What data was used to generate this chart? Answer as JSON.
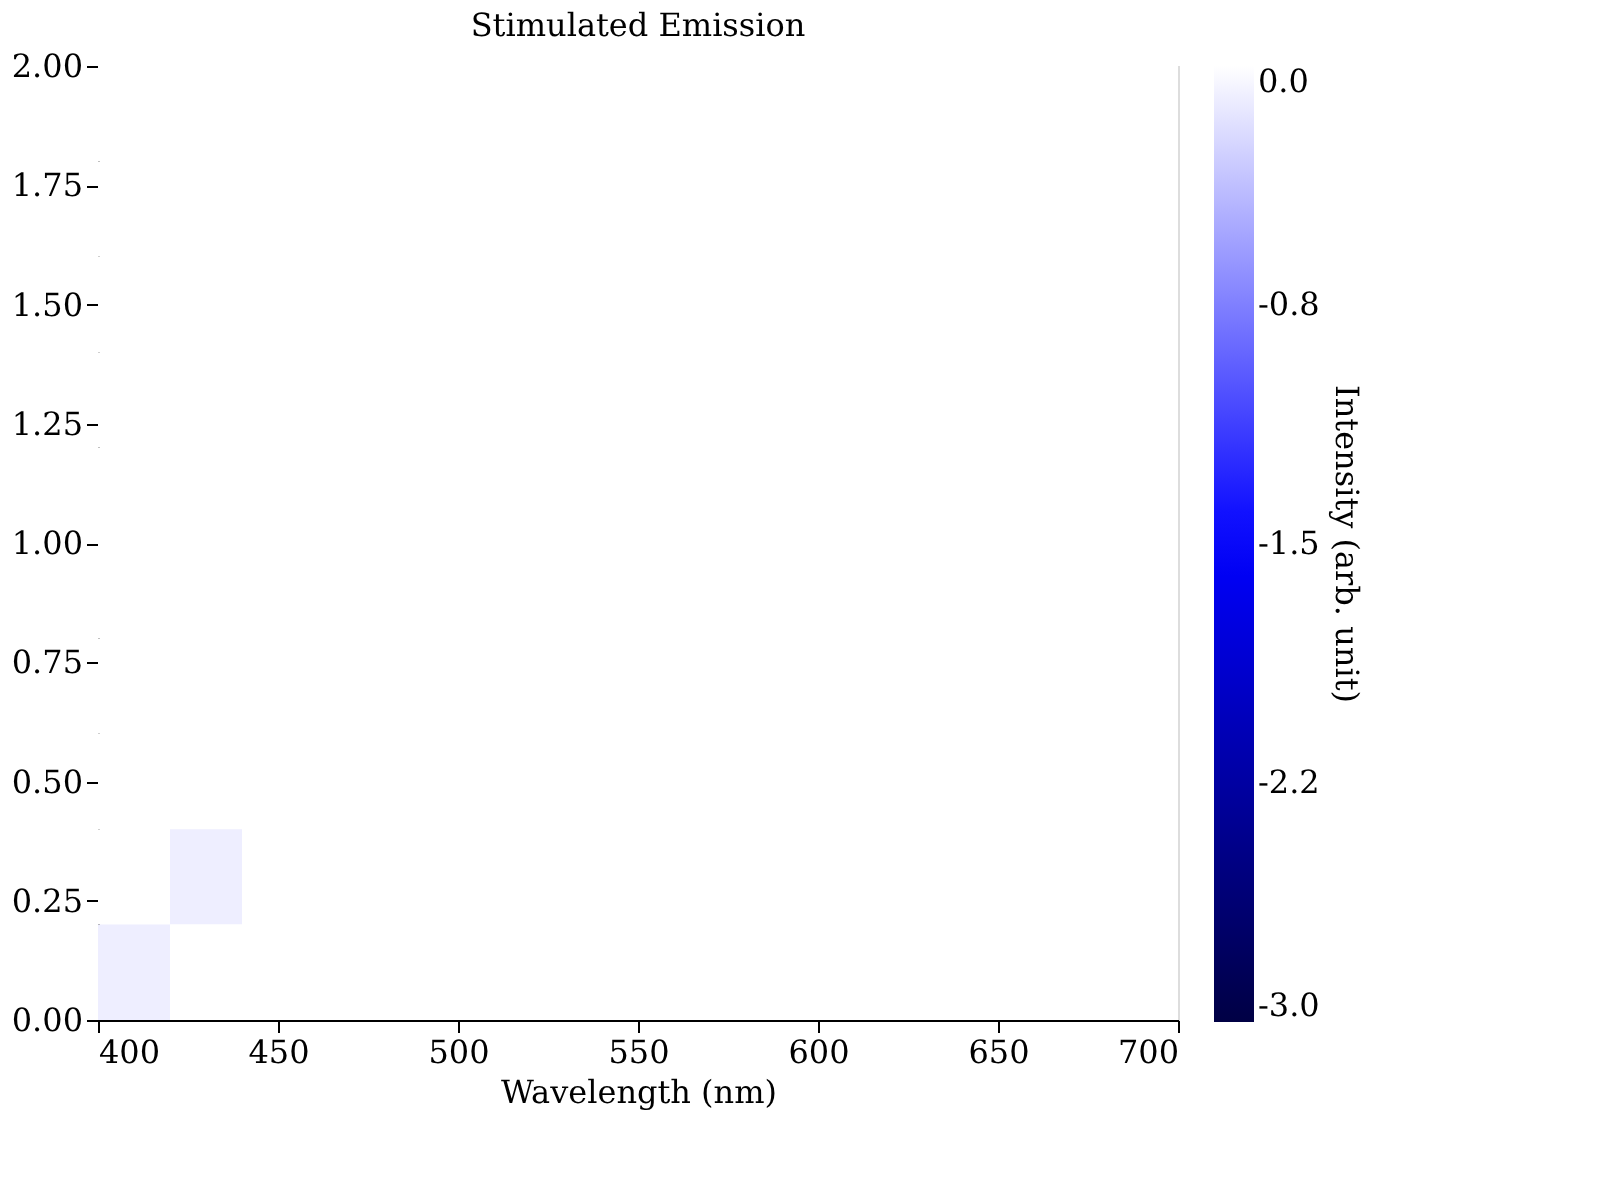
{
  "chart_data": {
    "type": "heatmap",
    "title": "Stimulated Emission",
    "xlabel": "Wavelength (nm)",
    "clabel": "Intensity (arb. unit)",
    "x": [
      410,
      430,
      450,
      470,
      490,
      510,
      530,
      550,
      570,
      590,
      610,
      630,
      650,
      670,
      690
    ],
    "y": [
      1.9,
      1.7,
      1.5,
      1.3,
      1.1,
      0.9,
      0.7,
      0.5,
      0.3,
      0.1
    ],
    "cells": [
      [
        0,
        0,
        0,
        0,
        0,
        0,
        0,
        0,
        0,
        0,
        0,
        0,
        0,
        0,
        0
      ],
      [
        0,
        0,
        0,
        0,
        0,
        0,
        0,
        0,
        0,
        0,
        0,
        0,
        0,
        0,
        0
      ],
      [
        0,
        0,
        0,
        0,
        0,
        0,
        0,
        0,
        0,
        0,
        0,
        0,
        0,
        0,
        0
      ],
      [
        0,
        0,
        0,
        0,
        0,
        0,
        0,
        0,
        0,
        0,
        0,
        0,
        0,
        0,
        0
      ],
      [
        0,
        0,
        0,
        0,
        0,
        0,
        0,
        0,
        0,
        0,
        0,
        0,
        0,
        0,
        0
      ],
      [
        0,
        0,
        0,
        0,
        0,
        0,
        0,
        0,
        0,
        0,
        0,
        0,
        0,
        0,
        0
      ],
      [
        0,
        0,
        0,
        0,
        0,
        0,
        0,
        0,
        0,
        0,
        0,
        0,
        0,
        0,
        0
      ],
      [
        0,
        0,
        0,
        0,
        0,
        0,
        0,
        0,
        0,
        0,
        0,
        0,
        0,
        0,
        0
      ],
      [
        0,
        -0.1,
        0,
        0,
        0,
        0,
        0,
        0,
        0,
        0,
        0,
        0,
        0,
        0,
        0
      ],
      [
        -0.1,
        0,
        0,
        0,
        0,
        0,
        0,
        0,
        0,
        0,
        0,
        0,
        0,
        0,
        0
      ]
    ],
    "xlim": [
      400,
      700
    ],
    "xticks": [
      400,
      450,
      500,
      550,
      600,
      650,
      700
    ],
    "ylim": [
      0,
      2
    ],
    "yticks": [
      {
        "value": 0,
        "label": "0.00"
      },
      {
        "value": 0.25,
        "label": "0.25"
      },
      {
        "value": 0.5,
        "label": "0.50"
      },
      {
        "value": 0.75,
        "label": "0.75"
      },
      {
        "value": 1,
        "label": "1.00"
      },
      {
        "value": 1.25,
        "label": "1.25"
      },
      {
        "value": 1.5,
        "label": "1.50"
      },
      {
        "value": 1.75,
        "label": "1.75"
      },
      {
        "value": 2,
        "label": "2.00"
      }
    ],
    "clim": [
      -3,
      0
    ],
    "cticks": [
      {
        "value": 0,
        "label": "0.0"
      },
      {
        "value": -0.75,
        "label": "-0.8"
      },
      {
        "value": -1.5,
        "label": "-1.5"
      },
      {
        "value": -2.25,
        "label": "-2.2"
      },
      {
        "value": -3,
        "label": "-3.0"
      }
    ],
    "colors": [
      "#000044",
      "#0000ff",
      "#ffffff"
    ]
  }
}
